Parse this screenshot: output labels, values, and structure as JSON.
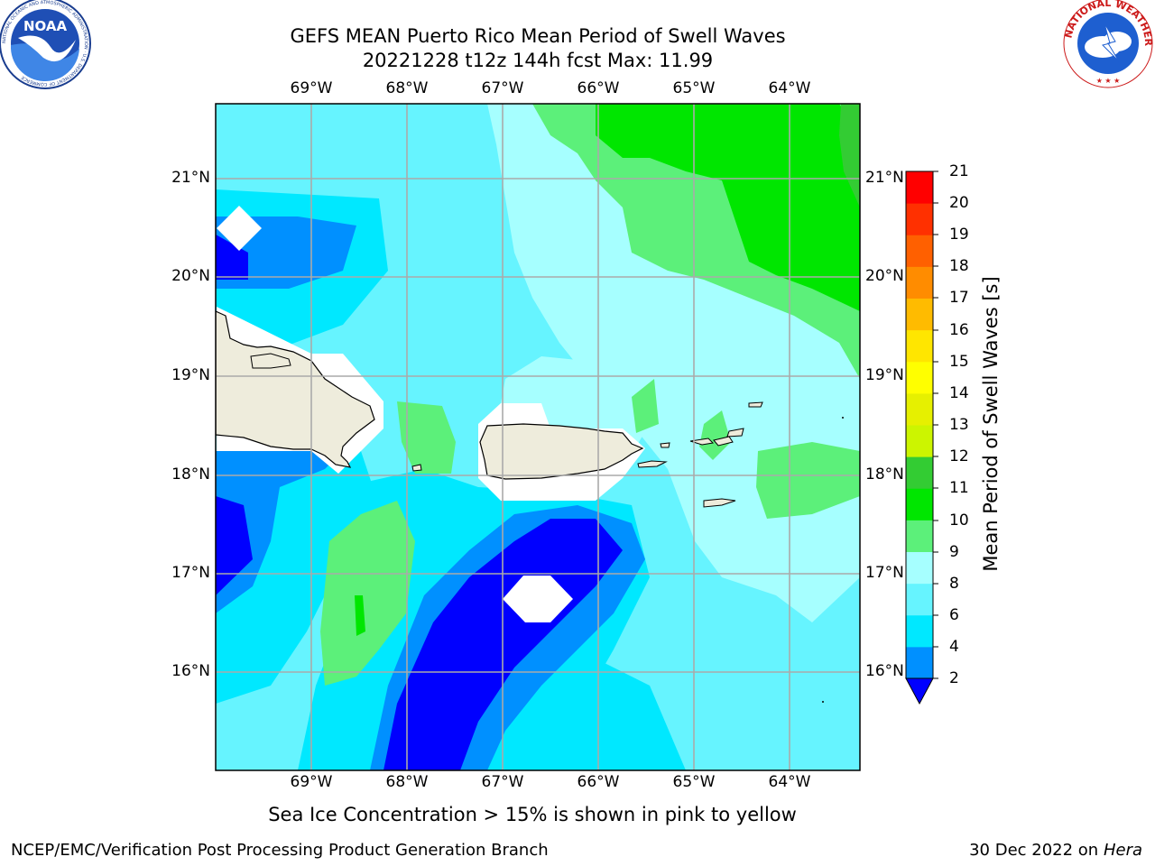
{
  "title_line1": "GEFS MEAN Puerto Rico Mean Period of Swell Waves",
  "title_line2": "20221228 t12z 144h fcst   Max: 11.99",
  "lon_labels": [
    "69°W",
    "68°W",
    "67°W",
    "66°W",
    "65°W",
    "64°W"
  ],
  "lat_labels": [
    "21°N",
    "20°N",
    "19°N",
    "18°N",
    "17°N",
    "16°N"
  ],
  "colorbar": {
    "title": "Mean Period of Swell Waves [s]",
    "ticks": [
      "21",
      "20",
      "19",
      "18",
      "17",
      "16",
      "15",
      "14",
      "13",
      "12",
      "11",
      "10",
      "9",
      "8",
      "6",
      "4",
      "2"
    ],
    "bins": [
      {
        "from": 2,
        "to": 4,
        "color": "#0090ff"
      },
      {
        "from": 4,
        "to": 6,
        "color": "#00e8ff"
      },
      {
        "from": 6,
        "to": 8,
        "color": "#66f4ff"
      },
      {
        "from": 8,
        "to": 9,
        "color": "#a6ffff"
      },
      {
        "from": 9,
        "to": 10,
        "color": "#5cf07a"
      },
      {
        "from": 10,
        "to": 11,
        "color": "#00e600"
      },
      {
        "from": 11,
        "to": 12,
        "color": "#33cc33"
      },
      {
        "from": 12,
        "to": 13,
        "color": "#ccf500"
      },
      {
        "from": 13,
        "to": 14,
        "color": "#e6f000"
      },
      {
        "from": 14,
        "to": 15,
        "color": "#ffff00"
      },
      {
        "from": 15,
        "to": 16,
        "color": "#ffe600"
      },
      {
        "from": 16,
        "to": 17,
        "color": "#ffbb00"
      },
      {
        "from": 17,
        "to": 18,
        "color": "#ff8c00"
      },
      {
        "from": 18,
        "to": 19,
        "color": "#ff6000"
      },
      {
        "from": 19,
        "to": 20,
        "color": "#ff3000"
      },
      {
        "from": 20,
        "to": 21,
        "color": "#ff0000"
      }
    ],
    "under_color": "#0000ff"
  },
  "map": {
    "lon_range": [
      -70,
      -63.25
    ],
    "lat_range": [
      15,
      21.75
    ],
    "land_color": "#eeecdc",
    "grid": true
  },
  "ice_note": "Sea Ice Concentration > 15% is shown in pink to yellow",
  "footer_left": "NCEP/EMC/Verification Post Processing Product Generation Branch",
  "footer_date": "30 Dec 2022 on",
  "footer_machine": "Hera",
  "logos": {
    "left": "NOAA",
    "left_ring": "NATIONAL OCEANIC AND ATMOSPHERIC ADMINISTRATION · U.S. DEPARTMENT OF COMMERCE",
    "right_ring": "NATIONAL WEATHER SERVICE"
  }
}
